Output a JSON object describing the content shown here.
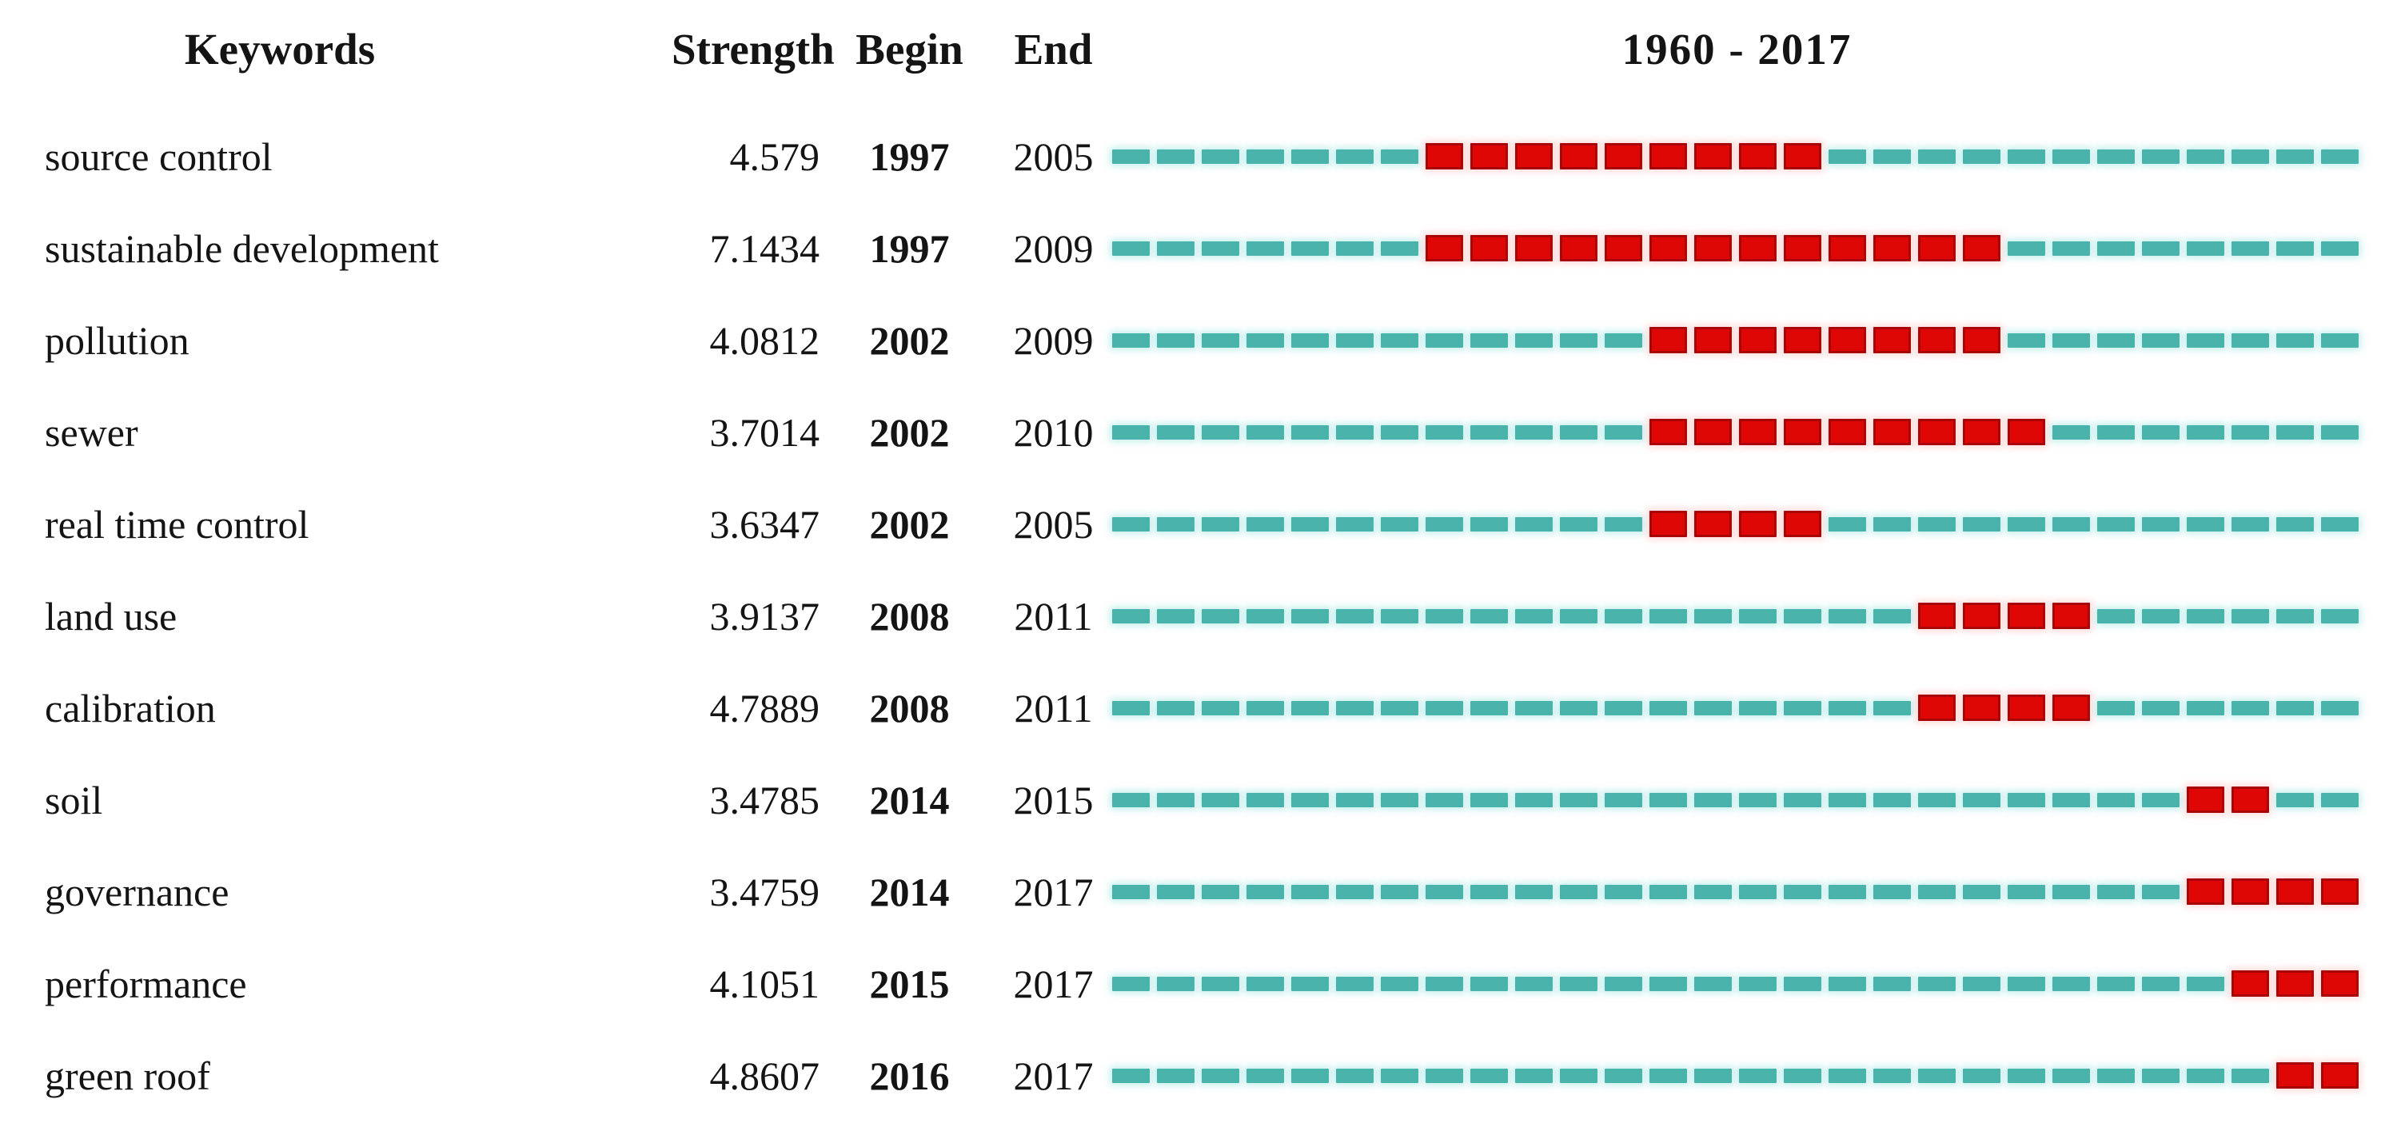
{
  "header": {
    "keywords": "Keywords",
    "strength": "Strength",
    "begin": "Begin",
    "end": "End",
    "period": "1960 - 2017"
  },
  "colors": {
    "background": "#ffffff",
    "text": "#141414",
    "timeline_track": "#49b3ac",
    "burst": "#df0606"
  },
  "chart_data": {
    "type": "table",
    "title": "1960 - 2017",
    "description": "Keywords with strongest citation bursts: per-keyword burst strength and burst period shown as red segments on a dashed yearly timeline",
    "columns": [
      "Keywords",
      "Strength",
      "Begin",
      "End"
    ],
    "timeline": {
      "label": "1960 - 2017",
      "drawn_start_year": 1990,
      "drawn_end_year": 2017,
      "dash_per_year": 1,
      "track_color": "#49b3ac",
      "burst_color": "#df0606"
    },
    "rows": [
      {
        "keyword": "source control",
        "strength": "4.579",
        "begin": 1997,
        "end": 2005
      },
      {
        "keyword": "sustainable development",
        "strength": "7.1434",
        "begin": 1997,
        "end": 2009
      },
      {
        "keyword": "pollution",
        "strength": "4.0812",
        "begin": 2002,
        "end": 2009
      },
      {
        "keyword": "sewer",
        "strength": "3.7014",
        "begin": 2002,
        "end": 2010
      },
      {
        "keyword": "real time control",
        "strength": "3.6347",
        "begin": 2002,
        "end": 2005
      },
      {
        "keyword": "land use",
        "strength": "3.9137",
        "begin": 2008,
        "end": 2011
      },
      {
        "keyword": "calibration",
        "strength": "4.7889",
        "begin": 2008,
        "end": 2011
      },
      {
        "keyword": "soil",
        "strength": "3.4785",
        "begin": 2014,
        "end": 2015
      },
      {
        "keyword": "governance",
        "strength": "3.4759",
        "begin": 2014,
        "end": 2017
      },
      {
        "keyword": "performance",
        "strength": "4.1051",
        "begin": 2015,
        "end": 2017
      },
      {
        "keyword": "green roof",
        "strength": "4.8607",
        "begin": 2016,
        "end": 2017
      }
    ]
  }
}
